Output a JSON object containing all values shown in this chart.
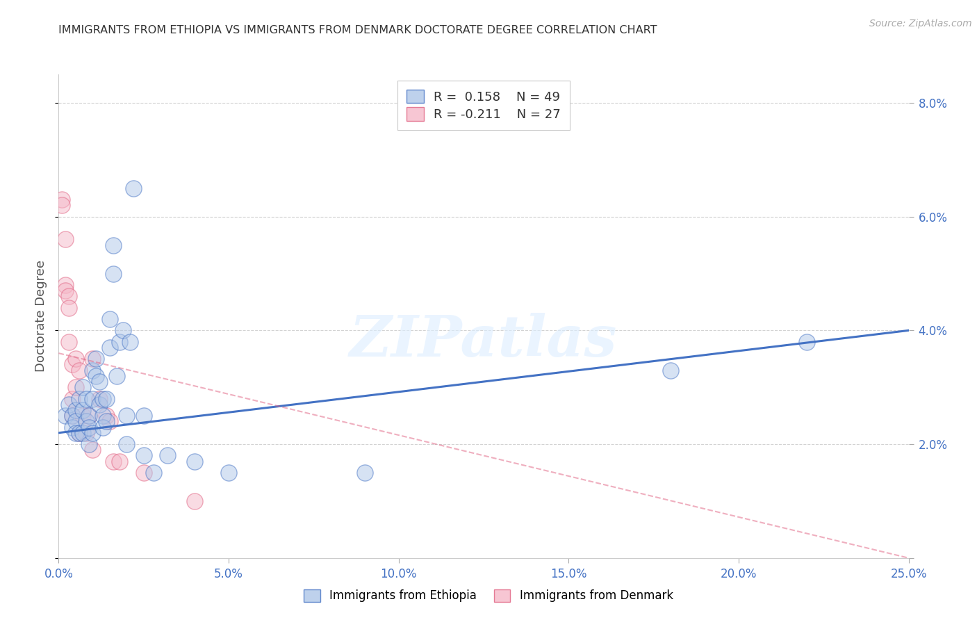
{
  "title": "IMMIGRANTS FROM ETHIOPIA VS IMMIGRANTS FROM DENMARK DOCTORATE DEGREE CORRELATION CHART",
  "source": "Source: ZipAtlas.com",
  "ylabel": "Doctorate Degree",
  "xlim": [
    0.0,
    0.25
  ],
  "ylim": [
    0.0,
    0.085
  ],
  "xticks": [
    0.0,
    0.05,
    0.1,
    0.15,
    0.2,
    0.25
  ],
  "yticks": [
    0.0,
    0.02,
    0.04,
    0.06,
    0.08
  ],
  "xtick_labels": [
    "0.0%",
    "5.0%",
    "10.0%",
    "15.0%",
    "20.0%",
    "25.0%"
  ],
  "ytick_labels": [
    "",
    "2.0%",
    "4.0%",
    "6.0%",
    "8.0%"
  ],
  "title_color": "#333333",
  "axis_color": "#4472c4",
  "background_color": "#ffffff",
  "grid_color": "#c8c8c8",
  "watermark": "ZIPatlas",
  "legend1_r": "R =  0.158",
  "legend1_n": "N = 49",
  "legend2_r": "R = -0.211",
  "legend2_n": "N = 27",
  "ethiopia_color": "#aec6e8",
  "denmark_color": "#f5b8c8",
  "line_ethiopia_color": "#4472c4",
  "line_denmark_color": "#e06080",
  "ethiopia_scatter_x": [
    0.002,
    0.003,
    0.004,
    0.004,
    0.005,
    0.005,
    0.005,
    0.006,
    0.006,
    0.007,
    0.007,
    0.007,
    0.008,
    0.008,
    0.009,
    0.009,
    0.009,
    0.01,
    0.01,
    0.01,
    0.011,
    0.011,
    0.012,
    0.012,
    0.013,
    0.013,
    0.013,
    0.014,
    0.014,
    0.015,
    0.015,
    0.016,
    0.016,
    0.017,
    0.018,
    0.019,
    0.02,
    0.02,
    0.021,
    0.022,
    0.025,
    0.025,
    0.028,
    0.032,
    0.04,
    0.05,
    0.09,
    0.18,
    0.22
  ],
  "ethiopia_scatter_y": [
    0.025,
    0.027,
    0.025,
    0.023,
    0.026,
    0.024,
    0.022,
    0.028,
    0.022,
    0.03,
    0.026,
    0.022,
    0.028,
    0.024,
    0.025,
    0.023,
    0.02,
    0.033,
    0.028,
    0.022,
    0.035,
    0.032,
    0.031,
    0.027,
    0.028,
    0.025,
    0.023,
    0.028,
    0.024,
    0.042,
    0.037,
    0.055,
    0.05,
    0.032,
    0.038,
    0.04,
    0.025,
    0.02,
    0.038,
    0.065,
    0.025,
    0.018,
    0.015,
    0.018,
    0.017,
    0.015,
    0.015,
    0.033,
    0.038
  ],
  "denmark_scatter_x": [
    0.001,
    0.001,
    0.002,
    0.002,
    0.002,
    0.003,
    0.003,
    0.003,
    0.004,
    0.004,
    0.004,
    0.005,
    0.005,
    0.006,
    0.006,
    0.007,
    0.008,
    0.009,
    0.01,
    0.01,
    0.012,
    0.014,
    0.015,
    0.016,
    0.018,
    0.025,
    0.04
  ],
  "denmark_scatter_y": [
    0.063,
    0.062,
    0.056,
    0.048,
    0.047,
    0.046,
    0.044,
    0.038,
    0.034,
    0.028,
    0.025,
    0.035,
    0.03,
    0.033,
    0.022,
    0.025,
    0.022,
    0.025,
    0.035,
    0.019,
    0.028,
    0.025,
    0.024,
    0.017,
    0.017,
    0.015,
    0.01
  ],
  "ethiopia_trend_x": [
    0.0,
    0.25
  ],
  "ethiopia_trend_y": [
    0.022,
    0.04
  ],
  "denmark_trend_x": [
    0.0,
    0.25
  ],
  "denmark_trend_y": [
    0.036,
    0.0
  ],
  "marker_size": 280,
  "marker_alpha": 0.5,
  "marker_linewidth": 1.0
}
